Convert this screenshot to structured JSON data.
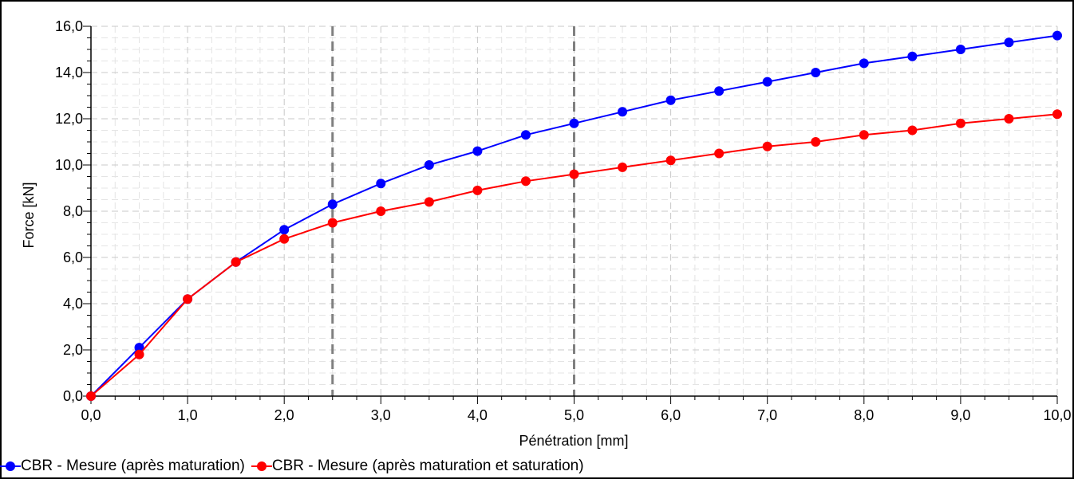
{
  "chart_data": {
    "type": "line",
    "title": "",
    "xlabel": "Pénétration [mm]",
    "ylabel": "Force [kN]",
    "xlim": [
      0,
      10
    ],
    "ylim": [
      0,
      16
    ],
    "xticks": [
      0,
      1,
      2,
      3,
      4,
      5,
      6,
      7,
      8,
      9,
      10
    ],
    "xtick_labels": [
      "0,0",
      "1,0",
      "2,0",
      "3,0",
      "4,0",
      "5,0",
      "6,0",
      "7,0",
      "8,0",
      "9,0",
      "10,0"
    ],
    "yticks": [
      0,
      2,
      4,
      6,
      8,
      10,
      12,
      14,
      16
    ],
    "ytick_labels": [
      "0,0",
      "2,0",
      "4,0",
      "6,0",
      "8,0",
      "10,0",
      "12,0",
      "14,0",
      "16,0"
    ],
    "grid": true,
    "legend_position": "bottom-left",
    "reference_lines_x": [
      2.5,
      5.0
    ],
    "reference_line_color": "#808080",
    "x": [
      0,
      0.5,
      1.0,
      1.5,
      2.0,
      2.5,
      3.0,
      3.5,
      4.0,
      4.5,
      5.0,
      5.5,
      6.0,
      6.5,
      7.0,
      7.5,
      8.0,
      8.5,
      9.0,
      9.5,
      10.0
    ],
    "series": [
      {
        "name": "CBR - Mesure (après maturation)",
        "color": "#0000ff",
        "values": [
          0,
          2.1,
          4.2,
          5.8,
          7.2,
          8.3,
          9.2,
          10.0,
          10.6,
          11.3,
          11.8,
          12.3,
          12.8,
          13.2,
          13.6,
          14.0,
          14.4,
          14.7,
          15.0,
          15.3,
          15.6
        ]
      },
      {
        "name": "CBR - Mesure (après maturation et saturation)",
        "color": "#ff0000",
        "values": [
          0,
          1.8,
          4.2,
          5.8,
          6.8,
          7.5,
          8.0,
          8.4,
          8.9,
          9.3,
          9.6,
          9.9,
          10.2,
          10.5,
          10.8,
          11.0,
          11.3,
          11.5,
          11.8,
          12.0,
          12.2
        ]
      }
    ]
  }
}
